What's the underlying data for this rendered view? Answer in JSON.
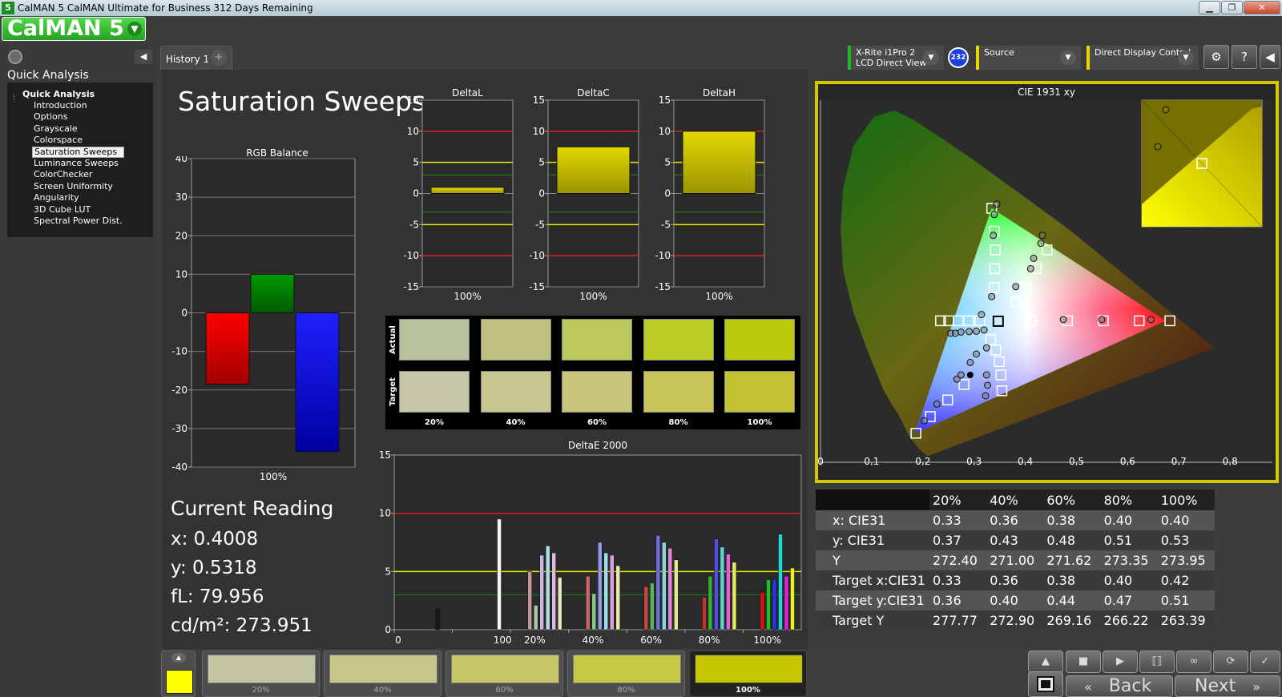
{
  "window": {
    "title": "CalMAN 5 CalMAN Ultimate for Business 312 Days Remaining",
    "icon": "5"
  },
  "logo": {
    "text": "CalMAN 5"
  },
  "sidebar": {
    "section_title": "Quick Analysis",
    "tree_header": "Quick Analysis",
    "items": [
      "Introduction",
      "Options",
      "Grayscale",
      "Colorspace",
      "Saturation Sweeps",
      "Luminance Sweeps",
      "ColorChecker",
      "Screen Uniformity",
      "Angularity",
      "3D Cube LUT",
      "Spectral Power Dist."
    ],
    "selected": "Saturation Sweeps"
  },
  "tabs": {
    "history": "History 1",
    "add": "+"
  },
  "devices": {
    "meter_line1": "X-Rite i1Pro 2",
    "meter_line2": "LCD Direct View",
    "badge": "232",
    "source": "Source",
    "display": "Direct Display Control",
    "colors": {
      "meter": "#1fb81f",
      "source": "#e6d800",
      "display": "#e6d800"
    }
  },
  "page": {
    "title": "Saturation Sweeps"
  },
  "rgb_balance": {
    "title": "RGB Balance",
    "ticks": [
      "40",
      "30",
      "20",
      "10",
      "0",
      "-10",
      "-20",
      "-30",
      "-40"
    ],
    "category": "100%",
    "values": {
      "red": -18.5,
      "green": 10,
      "blue": -36
    },
    "ylim": [
      -40,
      40
    ]
  },
  "delta_charts": [
    {
      "title": "DeltaL",
      "category": "100%",
      "value": 1,
      "ylim": [
        -15,
        15
      ]
    },
    {
      "title": "DeltaC",
      "category": "100%",
      "value": 7.5,
      "ylim": [
        -15,
        15
      ]
    },
    {
      "title": "DeltaH",
      "category": "100%",
      "value": 10,
      "ylim": [
        -15,
        15
      ]
    }
  ],
  "delta_ticks": [
    "15",
    "10",
    "5",
    "0",
    "-5",
    "-10",
    "-15"
  ],
  "swatches": {
    "row_labels": [
      "Actual",
      "Target"
    ],
    "labels": [
      "20%",
      "40%",
      "60%",
      "80%",
      "100%"
    ],
    "actual": [
      "#b8c29c",
      "#bec27e",
      "#bdc85b",
      "#bbcb26",
      "#b9cb0b"
    ],
    "target": [
      "#c4c6a6",
      "#c6c690",
      "#c7c67c",
      "#c8c65b",
      "#c3c233"
    ]
  },
  "reading": {
    "title": "Current Reading",
    "x": "x: 0.4008",
    "y": "y: 0.5318",
    "fl": "fL: 79.956",
    "cd": "cd/m²: 273.951"
  },
  "deltae": {
    "title": "DeltaE 2000",
    "y_ticks": [
      "15",
      "10",
      "5",
      "0"
    ],
    "x_labels": [
      "0",
      "100",
      "20%",
      "40%",
      "60%",
      "80%",
      "100%"
    ],
    "thresholds": [
      10,
      5,
      3
    ],
    "ylim": [
      0,
      15
    ],
    "groups": [
      {
        "label": "0",
        "bars": [
          {
            "v": 0,
            "c": "#222"
          },
          {
            "v": 1.8,
            "c": "#1a1a1a"
          }
        ]
      },
      {
        "label": "100",
        "bars": [
          {
            "v": 9.5,
            "c": "#f4f4f4"
          }
        ]
      },
      {
        "label": "20%",
        "bars": [
          {
            "v": 5,
            "c": "#c89898"
          },
          {
            "v": 2.1,
            "c": "#a8c8a8"
          },
          {
            "v": 6.4,
            "c": "#c8b8e8"
          },
          {
            "v": 7.2,
            "c": "#b0e0e0"
          },
          {
            "v": 6.6,
            "c": "#e0b8e0"
          },
          {
            "v": 4.5,
            "c": "#e8e8c0"
          }
        ]
      },
      {
        "label": "40%",
        "bars": [
          {
            "v": 4.6,
            "c": "#c86868"
          },
          {
            "v": 3.1,
            "c": "#88c888"
          },
          {
            "v": 7.5,
            "c": "#9898e8"
          },
          {
            "v": 6.6,
            "c": "#a0e0e0"
          },
          {
            "v": 6.4,
            "c": "#e0a0e0"
          },
          {
            "v": 5.5,
            "c": "#e8e8a8"
          }
        ]
      },
      {
        "label": "60%",
        "bars": [
          {
            "v": 3.7,
            "c": "#c84848"
          },
          {
            "v": 4,
            "c": "#58b858"
          },
          {
            "v": 8.1,
            "c": "#7070e0"
          },
          {
            "v": 7.5,
            "c": "#88d8d8"
          },
          {
            "v": 7,
            "c": "#e088e0"
          },
          {
            "v": 6,
            "c": "#e8e890"
          }
        ]
      },
      {
        "label": "80%",
        "bars": [
          {
            "v": 2.8,
            "c": "#c83030"
          },
          {
            "v": 4.6,
            "c": "#38b038"
          },
          {
            "v": 7.8,
            "c": "#5050e0"
          },
          {
            "v": 7.1,
            "c": "#60d0d0"
          },
          {
            "v": 6.5,
            "c": "#e060e0"
          },
          {
            "v": 5.8,
            "c": "#e8e860"
          }
        ]
      },
      {
        "label": "100%",
        "bars": [
          {
            "v": 3.2,
            "c": "#e01010"
          },
          {
            "v": 4.3,
            "c": "#20c020"
          },
          {
            "v": 4.3,
            "c": "#3030f0"
          },
          {
            "v": 8.2,
            "c": "#20d8d8"
          },
          {
            "v": 4.6,
            "c": "#e020e0"
          },
          {
            "v": 5.3,
            "c": "#f0f020"
          }
        ]
      }
    ]
  },
  "cie": {
    "title": "CIE 1931 xy",
    "x_ticks": [
      "0",
      "0.1",
      "0.2",
      "0.3",
      "0.4",
      "0.5",
      "0.6",
      "0.7",
      "0.8"
    ],
    "y_ticks": [
      "0",
      "0.1",
      "0.2",
      "0.3",
      "0.4",
      "0.5",
      "0.6",
      "0.7",
      "0.8"
    ],
    "white": [
      0.3127,
      0.329
    ],
    "targets": [
      [
        0.3,
        0.6
      ],
      [
        0.305,
        0.545
      ],
      [
        0.307,
        0.5
      ],
      [
        0.306,
        0.455
      ],
      [
        0.305,
        0.41
      ],
      [
        0.408,
        0.5
      ],
      [
        0.387,
        0.455
      ],
      [
        0.367,
        0.41
      ],
      [
        0.348,
        0.375
      ],
      [
        0.2,
        0.33
      ],
      [
        0.216,
        0.33
      ],
      [
        0.235,
        0.33
      ],
      [
        0.255,
        0.33
      ],
      [
        0.277,
        0.33
      ],
      [
        0.377,
        0.33
      ],
      [
        0.448,
        0.33
      ],
      [
        0.518,
        0.33
      ],
      [
        0.588,
        0.33
      ],
      [
        0.648,
        0.33
      ],
      [
        0.298,
        0.285
      ],
      [
        0.308,
        0.26
      ],
      [
        0.315,
        0.232
      ],
      [
        0.318,
        0.2
      ],
      [
        0.32,
        0.162
      ],
      [
        0.246,
        0.177
      ],
      [
        0.214,
        0.14
      ],
      [
        0.18,
        0.1
      ],
      [
        0.152,
        0.06
      ]
    ],
    "measured": [
      [
        0.31,
        0.61
      ],
      [
        0.305,
        0.585
      ],
      [
        0.303,
        0.535
      ],
      [
        0.399,
        0.535
      ],
      [
        0.396,
        0.516
      ],
      [
        0.382,
        0.48
      ],
      [
        0.376,
        0.455
      ],
      [
        0.347,
        0.412
      ],
      [
        0.3,
        0.388
      ],
      [
        0.28,
        0.345
      ],
      [
        0.22,
        0.3
      ],
      [
        0.229,
        0.3
      ],
      [
        0.24,
        0.303
      ],
      [
        0.256,
        0.304
      ],
      [
        0.27,
        0.305
      ],
      [
        0.285,
        0.308
      ],
      [
        0.44,
        0.333
      ],
      [
        0.515,
        0.333
      ],
      [
        0.611,
        0.333
      ],
      [
        0.29,
        0.265
      ],
      [
        0.27,
        0.25
      ],
      [
        0.258,
        0.23
      ],
      [
        0.29,
        0.2
      ],
      [
        0.292,
        0.175
      ],
      [
        0.288,
        0.15
      ],
      [
        0.232,
        0.19
      ],
      [
        0.24,
        0.2
      ],
      [
        0.193,
        0.13
      ],
      [
        0.168,
        0.09
      ]
    ],
    "current": [
      0.4008,
      0.5318
    ],
    "inset_points": [
      [
        0.7,
        0.59
      ],
      [
        0.8,
        0.65
      ]
    ]
  },
  "table": {
    "headers": [
      "",
      "20%",
      "40%",
      "60%",
      "80%",
      "100%"
    ],
    "rows": [
      {
        "label": "x: CIE31",
        "values": [
          "0.33",
          "0.36",
          "0.38",
          "0.40",
          "0.40"
        ]
      },
      {
        "label": "y: CIE31",
        "values": [
          "0.37",
          "0.43",
          "0.48",
          "0.51",
          "0.53"
        ]
      },
      {
        "label": "Y",
        "values": [
          "272.40",
          "271.00",
          "271.62",
          "273.35",
          "273.95"
        ]
      },
      {
        "label": "Target x:CIE31",
        "values": [
          "0.33",
          "0.36",
          "0.38",
          "0.40",
          "0.42"
        ]
      },
      {
        "label": "Target y:CIE31",
        "values": [
          "0.36",
          "0.40",
          "0.44",
          "0.47",
          "0.51"
        ]
      },
      {
        "label": "Target Y",
        "values": [
          "277.77",
          "272.90",
          "269.16",
          "266.22",
          "263.39"
        ]
      }
    ]
  },
  "bottom": {
    "current_color": "#ffff00",
    "strip": [
      {
        "label": "20%",
        "color": "#c4c6a2"
      },
      {
        "label": "40%",
        "color": "#c6c68a"
      },
      {
        "label": "60%",
        "color": "#c6c666"
      },
      {
        "label": "80%",
        "color": "#c7c748"
      },
      {
        "label": "100%",
        "color": "#c5c500"
      }
    ],
    "back": "Back",
    "next": "Next"
  }
}
